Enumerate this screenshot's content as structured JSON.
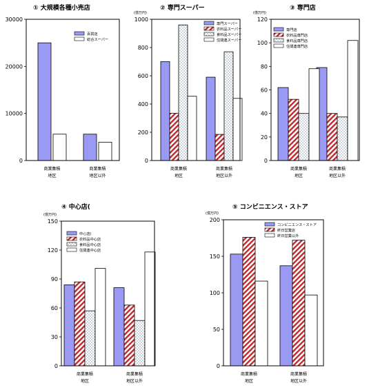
{
  "chart_data": [
    {
      "type": "bar",
      "title": "① 大規模各種小売店",
      "unit": "",
      "categories": [
        [
          "商業集積",
          "地区"
        ],
        [
          "商業集積",
          "地区以外"
        ]
      ],
      "ylim": [
        0,
        30000
      ],
      "yticks": [
        0,
        10000,
        20000,
        30000
      ],
      "series": [
        {
          "name": "百貨店",
          "values": [
            25000,
            5600
          ],
          "pattern": "solid"
        },
        {
          "name": "総合スーパー",
          "values": [
            5600,
            3900
          ],
          "pattern": "white"
        }
      ]
    },
    {
      "type": "bar",
      "title": "② 専門スーパー",
      "unit": "(億万円)",
      "categories": [
        [
          "商業集積",
          "地区"
        ],
        [
          "商業集積",
          "地区以外"
        ]
      ],
      "ylim": [
        0,
        1000
      ],
      "yticks": [
        0,
        200,
        400,
        600,
        800,
        1000
      ],
      "series": [
        {
          "name": "専門スーパー",
          "values": [
            700,
            590
          ],
          "pattern": "solid"
        },
        {
          "name": "衣料品スーパー",
          "values": [
            335,
            185
          ],
          "pattern": "hatch"
        },
        {
          "name": "食料品スーパー",
          "values": [
            960,
            770
          ],
          "pattern": "dots"
        },
        {
          "name": "住関連スーパー",
          "values": [
            455,
            440
          ],
          "pattern": "white"
        }
      ]
    },
    {
      "type": "bar",
      "title": "③ 専門店",
      "unit": "(億万円)",
      "categories": [
        [
          "商業集積",
          "地区"
        ],
        [
          "商業集積",
          "地区以外"
        ]
      ],
      "ylim": [
        0,
        120
      ],
      "yticks": [
        0,
        20,
        40,
        60,
        80,
        100,
        120
      ],
      "series": [
        {
          "name": "専門店",
          "values": [
            62,
            79
          ],
          "pattern": "solid"
        },
        {
          "name": "衣料品専門店",
          "values": [
            52,
            40
          ],
          "pattern": "hatch"
        },
        {
          "name": "食料品専門店",
          "values": [
            40,
            37
          ],
          "pattern": "dots"
        },
        {
          "name": "住関連専門店",
          "values": [
            78,
            102
          ],
          "pattern": "white"
        }
      ]
    },
    {
      "type": "bar",
      "title": "④ 中心店(",
      "unit": "(億万円)",
      "categories": [
        [
          "商業集積",
          "地区"
        ],
        [
          "商業集積",
          "地区以外"
        ]
      ],
      "ylim": [
        0,
        150
      ],
      "yticks": [
        0,
        30,
        60,
        90,
        120,
        150
      ],
      "series": [
        {
          "name": "中心店(",
          "values": [
            84,
            81
          ],
          "pattern": "solid"
        },
        {
          "name": "衣料品中心店",
          "values": [
            87,
            63
          ],
          "pattern": "hatch"
        },
        {
          "name": "食料品中心店",
          "values": [
            57,
            47
          ],
          "pattern": "dots"
        },
        {
          "name": "住関連中心店",
          "values": [
            101,
            118
          ],
          "pattern": "white"
        }
      ]
    },
    {
      "type": "bar",
      "title": "⑤ コンビニエンス・ストア",
      "unit": "(億万円)",
      "categories": [
        [
          "商業集積",
          "地区"
        ],
        [
          "商業集積",
          "地区以外"
        ]
      ],
      "ylim": [
        0,
        200
      ],
      "yticks": [
        0,
        50,
        100,
        150,
        200
      ],
      "series": [
        {
          "name": "コンビニエンス・ストア",
          "values": [
            153,
            137
          ],
          "pattern": "solid"
        },
        {
          "name": "終日営業店",
          "values": [
            176,
            172
          ],
          "pattern": "hatch"
        },
        {
          "name": "終日営業以外",
          "values": [
            116,
            97
          ],
          "pattern": "white"
        }
      ]
    }
  ],
  "colors": {
    "solid_fill": "#9a9af2",
    "hatch_stripe": "#c0282d",
    "dot_color": "#556c8e",
    "frame": "#000000"
  }
}
